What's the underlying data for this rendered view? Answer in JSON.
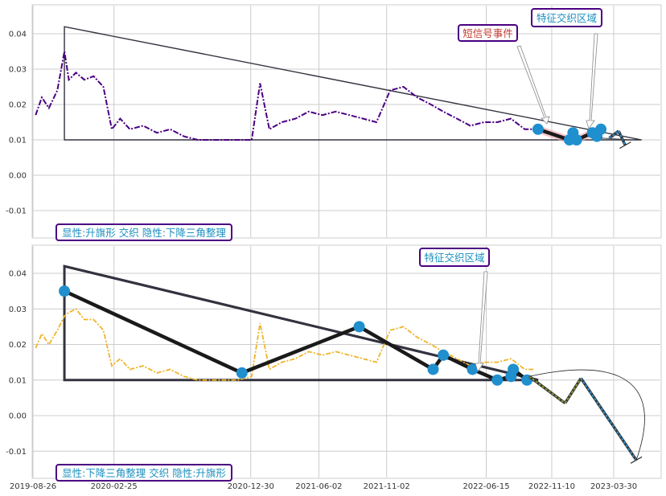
{
  "colors": {
    "background": "#ffffff",
    "panel_bg": "#ffffff",
    "grid": "#cccccc",
    "panel_border": "#cccccc",
    "top_series": "#4b0082",
    "bottom_series": "#f0b429",
    "pattern_line": "#1a1a1a",
    "triangle": "#333340",
    "marker": "#1f8fce",
    "label_box_border": "#4b0082",
    "label_text_blue": "#1a8fbf",
    "label_text_red": "#c0392b",
    "highlight": "#f4a0a8",
    "projection_green": "#8a9a3a",
    "projection_blue": "#2a8fcf"
  },
  "x_axis": {
    "tick_labels": [
      "2019-08-26",
      "2020-02-25",
      "2020-12-30",
      "2021-06-02",
      "2021-11-02",
      "2022-06-15",
      "2022-11-10",
      "2023-03-30"
    ]
  },
  "chart_data": [
    {
      "type": "line",
      "panel": "top",
      "ylim": [
        -0.018,
        0.048
      ],
      "y_ticks": [
        "0.04",
        "0.03",
        "0.02",
        "0.01",
        "0.00",
        "-0.01"
      ],
      "annotations": {
        "short_signal": "短信号事件",
        "feature_zone": "特征交织区域",
        "pattern_label": "显性:升旗形 交织 隐性:下降三角整理"
      },
      "triangle": {
        "x": [
          "2019-11-05",
          "2019-11-05",
          "2023-06-01"
        ],
        "y": [
          0.042,
          0.01,
          0.01
        ]
      },
      "pattern_points": [
        {
          "x": "2022-10-10",
          "y": 0.013
        },
        {
          "x": "2022-12-20",
          "y": 0.01
        },
        {
          "x": "2022-12-28",
          "y": 0.012
        },
        {
          "x": "2023-01-05",
          "y": 0.01
        },
        {
          "x": "2023-02-10",
          "y": 0.012
        },
        {
          "x": "2023-02-20",
          "y": 0.011
        },
        {
          "x": "2023-03-01",
          "y": 0.013
        }
      ],
      "projection": [
        {
          "x": "2023-03-20",
          "y": 0.0105
        },
        {
          "x": "2023-04-10",
          "y": 0.0125
        },
        {
          "x": "2023-04-25",
          "y": 0.0085
        }
      ],
      "series": [
        {
          "x": [
            "2019-09-01",
            "2019-09-15",
            "2019-10-01",
            "2019-10-20",
            "2019-11-05",
            "2019-11-15",
            "2019-12-01",
            "2019-12-20",
            "2020-01-10",
            "2020-02-01",
            "2020-02-20",
            "2020-03-10",
            "2020-04-01",
            "2020-05-01",
            "2020-06-01",
            "2020-07-01",
            "2020-08-01",
            "2020-09-01",
            "2020-10-01",
            "2020-11-01",
            "2020-12-01",
            "2021-01-01",
            "2021-01-20",
            "2021-02-10",
            "2021-03-10",
            "2021-04-10",
            "2021-05-10",
            "2021-06-10",
            "2021-07-10",
            "2021-08-10",
            "2021-09-10",
            "2021-10-10",
            "2021-11-10",
            "2021-12-10",
            "2022-01-10",
            "2022-02-10",
            "2022-03-10",
            "2022-04-10",
            "2022-05-10",
            "2022-06-10",
            "2022-07-10",
            "2022-08-10",
            "2022-09-10",
            "2022-10-01"
          ],
          "y": [
            0.017,
            0.022,
            0.019,
            0.024,
            0.035,
            0.027,
            0.029,
            0.027,
            0.028,
            0.025,
            0.013,
            0.016,
            0.013,
            0.014,
            0.012,
            0.013,
            0.011,
            0.01,
            0.01,
            0.01,
            0.01,
            0.01,
            0.026,
            0.013,
            0.015,
            0.016,
            0.018,
            0.017,
            0.018,
            0.017,
            0.016,
            0.015,
            0.024,
            0.025,
            0.022,
            0.02,
            0.018,
            0.016,
            0.014,
            0.015,
            0.015,
            0.016,
            0.013,
            0.013
          ]
        }
      ]
    },
    {
      "type": "line",
      "panel": "bottom",
      "ylim": [
        -0.018,
        0.048
      ],
      "y_ticks": [
        "0.04",
        "0.03",
        "0.02",
        "0.01",
        "0.00",
        "-0.01"
      ],
      "annotations": {
        "feature_zone": "特征交织区域",
        "pattern_label": "显性:下降三角整理 交织 隐性:升旗形"
      },
      "triangle": {
        "x": [
          "2019-11-05",
          "2019-11-05",
          "2022-10-10"
        ],
        "y": [
          0.042,
          0.01,
          0.01
        ]
      },
      "resistance_line": {
        "x": [
          "2019-11-05",
          "2022-10-10"
        ],
        "y": [
          0.042,
          0.01
        ]
      },
      "pattern_points": [
        {
          "x": "2019-11-05",
          "y": 0.035
        },
        {
          "x": "2020-12-10",
          "y": 0.012
        },
        {
          "x": "2021-09-01",
          "y": 0.025
        },
        {
          "x": "2022-02-15",
          "y": 0.013
        },
        {
          "x": "2022-03-10",
          "y": 0.017
        },
        {
          "x": "2022-05-15",
          "y": 0.013
        },
        {
          "x": "2022-07-10",
          "y": 0.01
        },
        {
          "x": "2022-08-10",
          "y": 0.011
        },
        {
          "x": "2022-08-15",
          "y": 0.013
        },
        {
          "x": "2022-09-15",
          "y": 0.01
        }
      ],
      "projection": [
        {
          "x": "2022-09-20",
          "y": 0.011
        },
        {
          "x": "2022-12-10",
          "y": 0.0035
        },
        {
          "x": "2023-01-15",
          "y": 0.0105
        },
        {
          "x": "2023-05-20",
          "y": -0.0125
        }
      ],
      "series": [
        {
          "x": [
            "2019-09-01",
            "2019-09-15",
            "2019-10-01",
            "2019-10-20",
            "2019-11-05",
            "2019-11-15",
            "2019-12-01",
            "2019-12-20",
            "2020-01-10",
            "2020-02-01",
            "2020-02-20",
            "2020-03-10",
            "2020-04-01",
            "2020-05-01",
            "2020-06-01",
            "2020-07-01",
            "2020-08-01",
            "2020-09-01",
            "2020-10-01",
            "2020-11-01",
            "2020-12-01",
            "2021-01-01",
            "2021-01-20",
            "2021-02-10",
            "2021-03-10",
            "2021-04-10",
            "2021-05-10",
            "2021-06-10",
            "2021-07-10",
            "2021-08-10",
            "2021-09-10",
            "2021-10-10",
            "2021-11-10",
            "2021-12-10",
            "2022-01-10",
            "2022-02-10",
            "2022-03-10",
            "2022-04-10",
            "2022-05-10",
            "2022-06-10",
            "2022-07-10",
            "2022-08-10",
            "2022-09-10",
            "2022-10-01"
          ],
          "y": [
            0.019,
            0.023,
            0.02,
            0.024,
            0.028,
            0.029,
            0.03,
            0.027,
            0.027,
            0.024,
            0.014,
            0.016,
            0.013,
            0.014,
            0.012,
            0.013,
            0.011,
            0.01,
            0.01,
            0.01,
            0.01,
            0.011,
            0.026,
            0.013,
            0.015,
            0.016,
            0.018,
            0.017,
            0.018,
            0.017,
            0.016,
            0.015,
            0.024,
            0.025,
            0.022,
            0.02,
            0.018,
            0.016,
            0.014,
            0.015,
            0.015,
            0.016,
            0.013,
            0.013
          ]
        }
      ]
    }
  ]
}
